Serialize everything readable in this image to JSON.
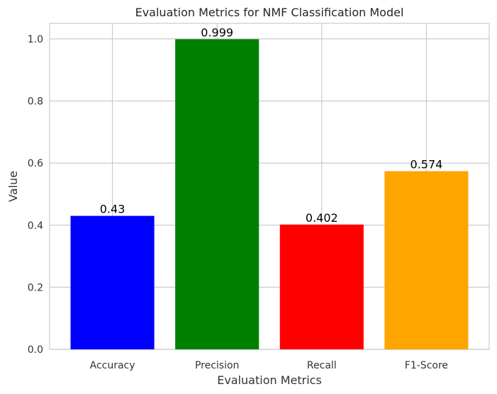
{
  "chart_data": {
    "type": "bar",
    "title": "Evaluation Metrics for NMF Classification Model",
    "xlabel": "Evaluation Metrics",
    "ylabel": "Value",
    "categories": [
      "Accuracy",
      "Precision",
      "Recall",
      "F1-Score"
    ],
    "values": [
      0.43,
      0.999,
      0.402,
      0.574
    ],
    "value_labels": [
      "0.43",
      "0.999",
      "0.402",
      "0.574"
    ],
    "colors": [
      "#0000ff",
      "#008000",
      "#ff0000",
      "#ffa500"
    ],
    "ylim": [
      0,
      1.05
    ],
    "yticks": [
      0.0,
      0.2,
      0.4,
      0.6,
      0.8,
      1.0
    ],
    "ytick_labels": [
      "0.0",
      "0.2",
      "0.4",
      "0.6",
      "0.8",
      "1.0"
    ],
    "grid": true,
    "legend": "none"
  }
}
